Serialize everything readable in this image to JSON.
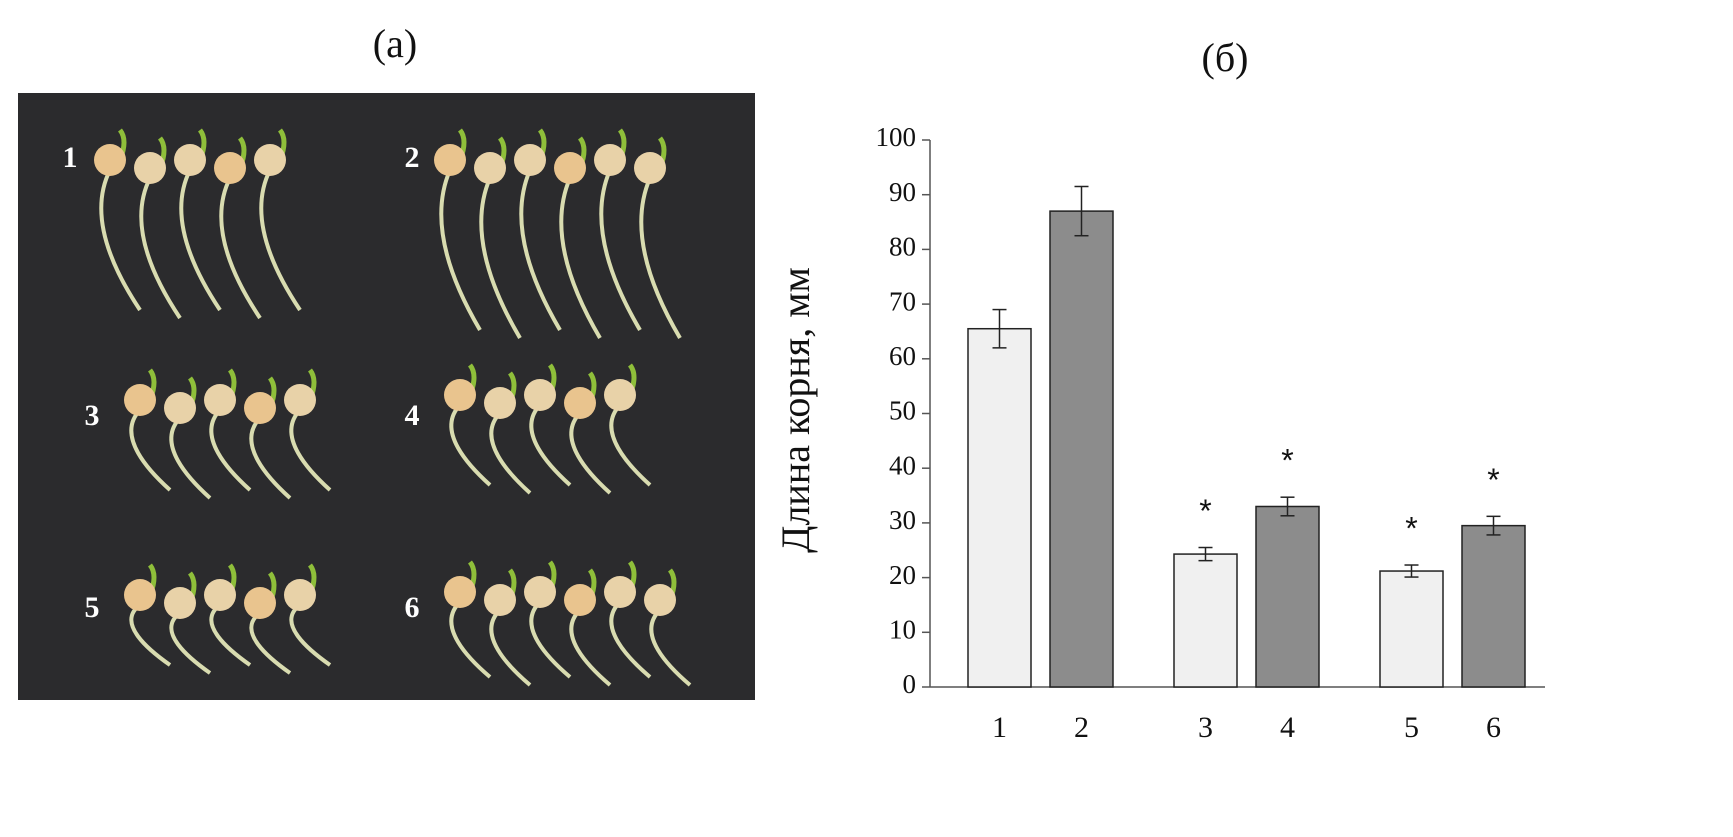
{
  "photo_panel": {
    "label": "(a)",
    "group_labels": [
      "1",
      "2",
      "3",
      "4",
      "5",
      "6"
    ]
  },
  "chart_data": {
    "type": "bar",
    "title": "(б)",
    "ylabel": "Длина корня, мм",
    "categories": [
      "1",
      "2",
      "3",
      "4",
      "5",
      "6"
    ],
    "values": [
      65.5,
      87,
      24.3,
      33,
      21.2,
      29.5
    ],
    "errors": [
      3.5,
      4.5,
      1.2,
      1.7,
      1.1,
      1.7
    ],
    "colors": [
      "#f0f0f0",
      "#8c8c8c",
      "#f0f0f0",
      "#8c8c8c",
      "#f0f0f0",
      "#8c8c8c"
    ],
    "annotations": [
      null,
      null,
      "*",
      "*",
      "*",
      "*"
    ],
    "ylim": [
      0,
      100
    ],
    "yticks": [
      0,
      10,
      20,
      30,
      40,
      50,
      60,
      70,
      80,
      90,
      100
    ],
    "grid": false
  }
}
